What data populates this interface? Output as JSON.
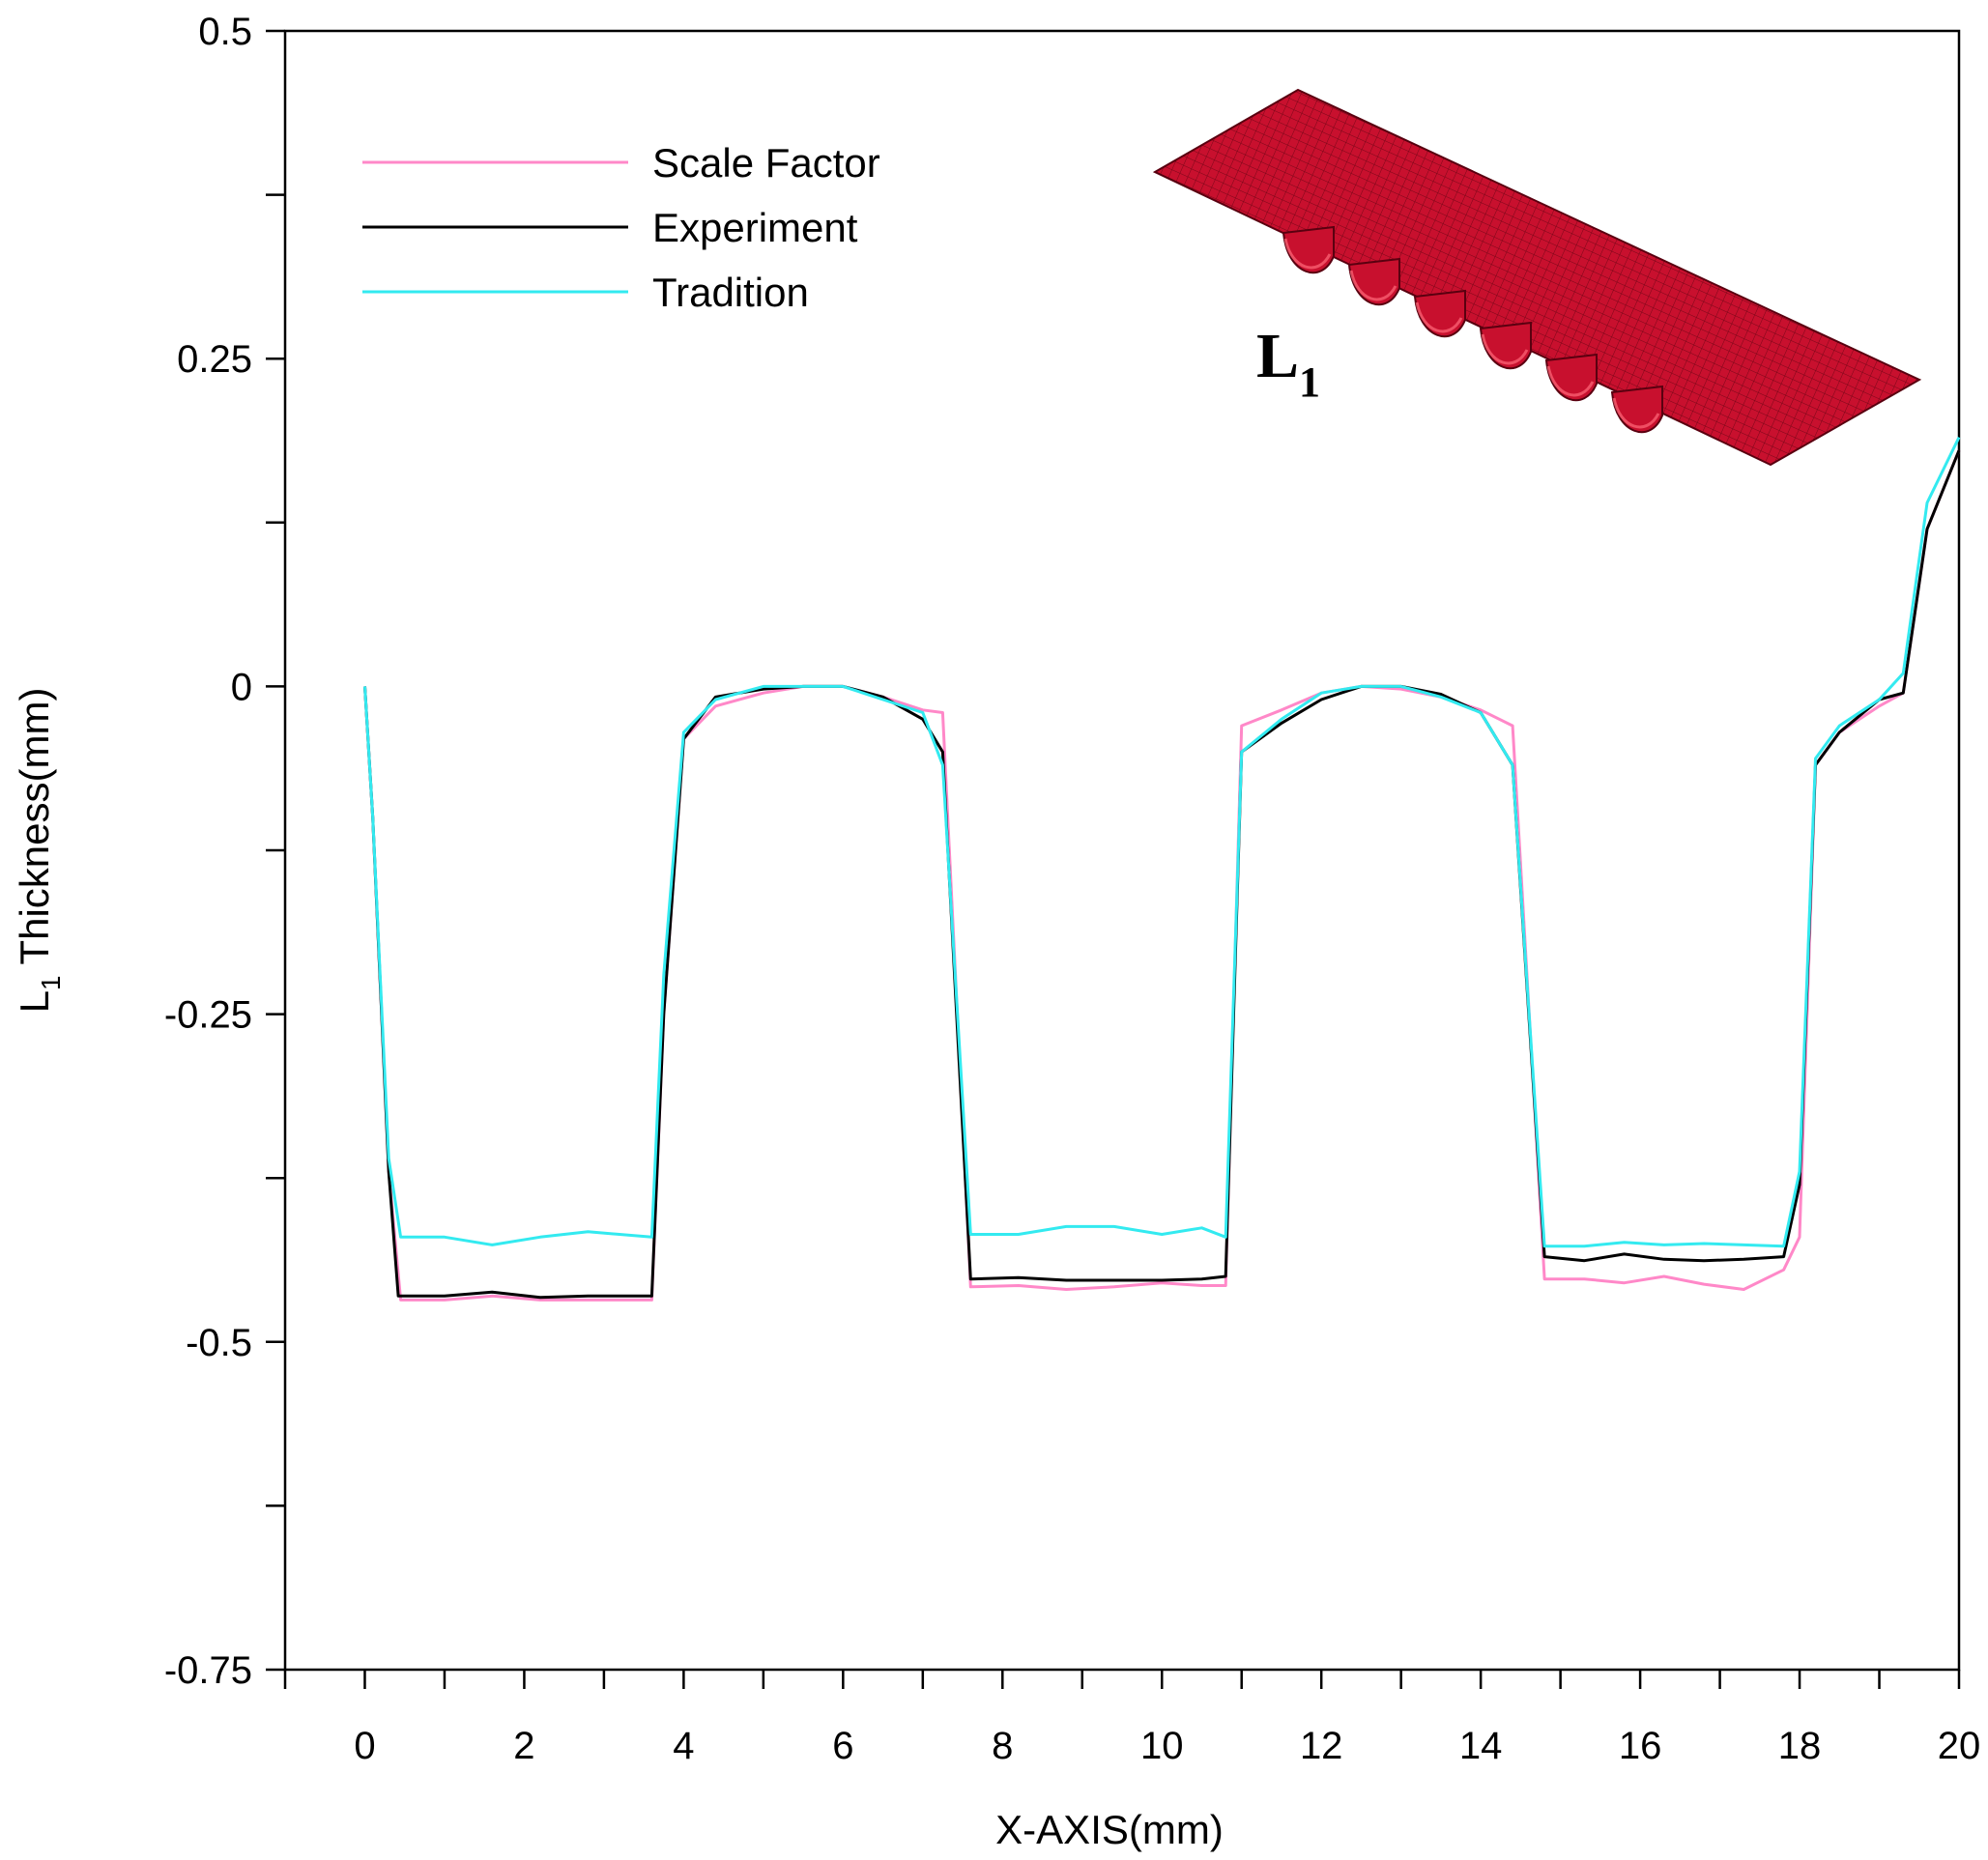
{
  "chart_data": {
    "type": "line",
    "title": "",
    "xlabel": "X-AXIS(mm)",
    "ylabel_main": "L",
    "ylabel_sub": "1",
    "ylabel_rest": " Thickness(mm)",
    "xlim": [
      -1,
      20
    ],
    "ylim": [
      -0.75,
      0.5
    ],
    "x_ticks": [
      0,
      2,
      4,
      6,
      8,
      10,
      12,
      14,
      16,
      18,
      20
    ],
    "x_minor_ticks": [
      -1,
      1,
      3,
      5,
      7,
      9,
      11,
      13,
      15,
      17,
      19
    ],
    "y_ticks": [
      0.5,
      0.25,
      0,
      -0.25,
      -0.5,
      -0.75
    ],
    "y_tick_labels": [
      "0.5",
      "0.25",
      "0",
      "-0.25",
      "-0.5",
      "-0.75"
    ],
    "y_minor_ticks": [
      0.375,
      0.125,
      -0.125,
      -0.375,
      -0.625
    ],
    "legend_position": "top-left",
    "inset_label_main": "L",
    "inset_label_sub": "1",
    "inset_color": "#c8102e",
    "series": [
      {
        "name": "Scale Factor",
        "color": "#ff88c8",
        "x": [
          0,
          0.1,
          0.3,
          0.45,
          1.0,
          1.6,
          2.2,
          2.8,
          3.6,
          3.75,
          4.0,
          4.4,
          5.0,
          5.5,
          6.0,
          6.5,
          7.0,
          7.25,
          7.6,
          8.2,
          8.8,
          9.4,
          10.0,
          10.5,
          10.8,
          11.0,
          11.5,
          12.0,
          12.5,
          13.0,
          13.5,
          14.0,
          14.4,
          14.8,
          15.3,
          15.8,
          16.3,
          16.8,
          17.3,
          17.8,
          18.0,
          18.2,
          18.5,
          19.0,
          19.3,
          19.6,
          20.0
        ],
        "values": [
          0,
          -0.1,
          -0.37,
          -0.468,
          -0.468,
          -0.465,
          -0.468,
          -0.468,
          -0.468,
          -0.25,
          -0.04,
          -0.015,
          -0.005,
          0,
          0,
          -0.008,
          -0.018,
          -0.02,
          -0.458,
          -0.457,
          -0.46,
          -0.458,
          -0.455,
          -0.457,
          -0.457,
          -0.03,
          -0.018,
          -0.005,
          0,
          -0.002,
          -0.008,
          -0.018,
          -0.03,
          -0.452,
          -0.452,
          -0.455,
          -0.45,
          -0.456,
          -0.46,
          -0.445,
          -0.42,
          -0.06,
          -0.035,
          -0.015,
          -0.005,
          0.12,
          0.18
        ]
      },
      {
        "name": "Experiment",
        "color": "#000000",
        "x": [
          0,
          0.1,
          0.3,
          0.42,
          1.0,
          1.6,
          2.2,
          2.8,
          3.6,
          3.75,
          4.0,
          4.4,
          5.0,
          5.5,
          6.0,
          6.5,
          7.0,
          7.25,
          7.6,
          8.2,
          8.8,
          9.4,
          10.0,
          10.5,
          10.8,
          11.0,
          11.5,
          12.0,
          12.5,
          13.0,
          13.5,
          14.0,
          14.4,
          14.8,
          15.3,
          15.8,
          16.3,
          16.8,
          17.3,
          17.8,
          18.0,
          18.2,
          18.5,
          19.0,
          19.3,
          19.6,
          20.0
        ],
        "values": [
          0,
          -0.1,
          -0.37,
          -0.465,
          -0.465,
          -0.462,
          -0.466,
          -0.465,
          -0.465,
          -0.25,
          -0.04,
          -0.008,
          -0.002,
          0,
          0,
          -0.008,
          -0.025,
          -0.05,
          -0.452,
          -0.451,
          -0.453,
          -0.453,
          -0.453,
          -0.452,
          -0.45,
          -0.05,
          -0.028,
          -0.01,
          0,
          0,
          -0.006,
          -0.02,
          -0.06,
          -0.435,
          -0.438,
          -0.433,
          -0.437,
          -0.438,
          -0.437,
          -0.435,
          -0.38,
          -0.06,
          -0.035,
          -0.01,
          -0.005,
          0.12,
          0.18
        ]
      },
      {
        "name": "Tradition",
        "color": "#33eaf0",
        "x": [
          0,
          0.1,
          0.3,
          0.45,
          1.0,
          1.6,
          2.2,
          2.8,
          3.6,
          3.75,
          4.0,
          4.4,
          5.0,
          5.5,
          6.0,
          6.5,
          7.0,
          7.25,
          7.6,
          8.2,
          8.8,
          9.4,
          10.0,
          10.5,
          10.8,
          11.0,
          11.5,
          12.0,
          12.5,
          13.0,
          13.5,
          14.0,
          14.4,
          14.8,
          15.3,
          15.8,
          16.3,
          16.8,
          17.3,
          17.8,
          18.0,
          18.2,
          18.5,
          19.0,
          19.3,
          19.6,
          20.0
        ],
        "values": [
          0,
          -0.1,
          -0.36,
          -0.42,
          -0.42,
          -0.426,
          -0.42,
          -0.416,
          -0.42,
          -0.22,
          -0.035,
          -0.01,
          0,
          0,
          0,
          -0.01,
          -0.02,
          -0.06,
          -0.418,
          -0.418,
          -0.412,
          -0.412,
          -0.418,
          -0.413,
          -0.42,
          -0.05,
          -0.025,
          -0.005,
          0,
          0,
          -0.008,
          -0.02,
          -0.06,
          -0.427,
          -0.427,
          -0.424,
          -0.426,
          -0.425,
          -0.426,
          -0.427,
          -0.37,
          -0.055,
          -0.03,
          -0.01,
          0.01,
          0.14,
          0.19
        ]
      }
    ]
  }
}
